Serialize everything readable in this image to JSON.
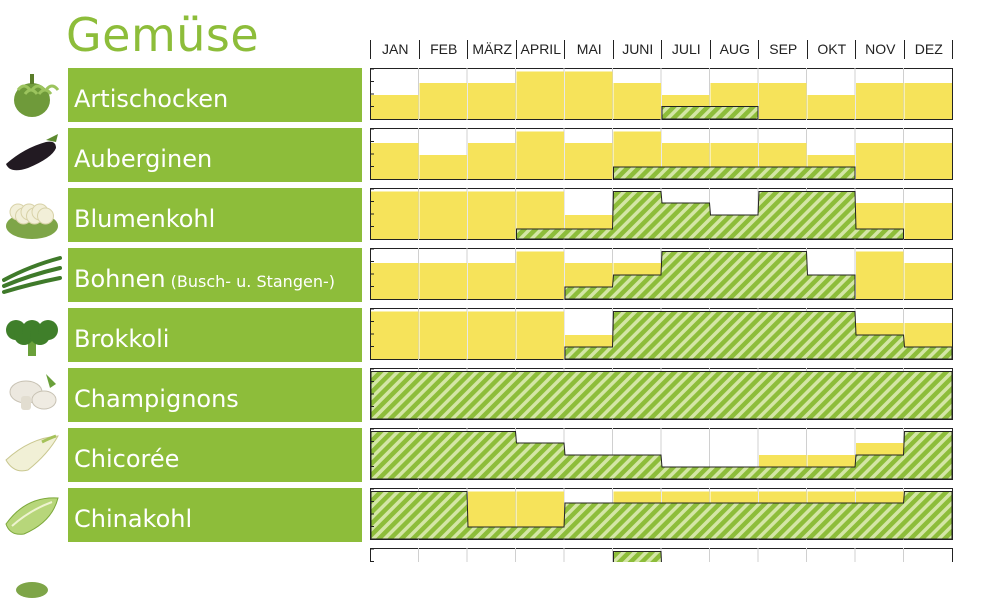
{
  "title": "Gemüse",
  "months": [
    "JAN",
    "FEB",
    "MÄRZ",
    "APRIL",
    "MAI",
    "JUNI",
    "JULI",
    "AUG",
    "SEP",
    "OKT",
    "NOV",
    "DEZ"
  ],
  "colors": {
    "green": "#8dbd3a",
    "yellow": "#f6e35a",
    "hatch": "#8dbd3a"
  },
  "chart_data": {
    "type": "area",
    "xlabel": "",
    "ylabel": "",
    "categories": [
      "JAN",
      "FEB",
      "MÄRZ",
      "APRIL",
      "MAI",
      "JUNI",
      "JULI",
      "AUG",
      "SEP",
      "OKT",
      "NOV",
      "DEZ"
    ],
    "ylim": [
      0,
      1
    ],
    "rows": [
      {
        "name": "Artischocken",
        "sub": "",
        "icon": "artichoke-icon",
        "import_level": [
          0.48,
          0.72,
          0.72,
          0.95,
          0.95,
          0.72,
          0.48,
          0.72,
          0.72,
          0.48,
          0.72,
          0.72
        ],
        "domestic_level": [
          0,
          0,
          0,
          0,
          0,
          0,
          0.25,
          0.25,
          0,
          0,
          0,
          0
        ]
      },
      {
        "name": "Auberginen",
        "sub": "",
        "icon": "eggplant-icon",
        "import_level": [
          0.72,
          0.48,
          0.72,
          0.95,
          0.72,
          0.95,
          0.72,
          0.72,
          0.72,
          0.48,
          0.72,
          0.72
        ],
        "domestic_level": [
          0,
          0,
          0,
          0,
          0,
          0.24,
          0.24,
          0.24,
          0.24,
          0.24,
          0,
          0
        ]
      },
      {
        "name": "Blumenkohl",
        "sub": "",
        "icon": "cauliflower-icon",
        "import_level": [
          0.95,
          0.95,
          0.95,
          0.95,
          0.48,
          0.24,
          0.24,
          0.24,
          0.24,
          0.24,
          0.72,
          0.72
        ],
        "domestic_level": [
          0,
          0,
          0,
          0.2,
          0.2,
          0.95,
          0.72,
          0.48,
          0.95,
          0.95,
          0.2,
          0
        ]
      },
      {
        "name": "Bohnen",
        "sub": "(Busch- u. Stangen-)",
        "icon": "beans-icon",
        "import_level": [
          0.72,
          0.72,
          0.72,
          0.95,
          0.72,
          0.72,
          0.48,
          0.48,
          0.48,
          0.24,
          0.95,
          0.72
        ],
        "domestic_level": [
          0,
          0,
          0,
          0,
          0.24,
          0.48,
          0.95,
          0.95,
          0.95,
          0.48,
          0,
          0
        ]
      },
      {
        "name": "Brokkoli",
        "sub": "",
        "icon": "broccoli-icon",
        "import_level": [
          0.95,
          0.95,
          0.95,
          0.95,
          0.48,
          0.24,
          0.24,
          0.24,
          0.24,
          0.72,
          0.72,
          0.72
        ],
        "domestic_level": [
          0,
          0,
          0,
          0,
          0.24,
          0.95,
          0.95,
          0.95,
          0.95,
          0.95,
          0.48,
          0.24
        ]
      },
      {
        "name": "Champignons",
        "sub": "",
        "icon": "mushroom-icon",
        "import_level": [
          0,
          0,
          0,
          0,
          0,
          0,
          0,
          0,
          0,
          0,
          0,
          0
        ],
        "domestic_level": [
          0.95,
          0.95,
          0.95,
          0.95,
          0.95,
          0.95,
          0.95,
          0.95,
          0.95,
          0.95,
          0.95,
          0.95
        ]
      },
      {
        "name": "Chicorée",
        "sub": "",
        "icon": "chicory-icon",
        "import_level": [
          0,
          0,
          0,
          0,
          0,
          0,
          0.24,
          0,
          0.48,
          0.48,
          0.72,
          0
        ],
        "domestic_level": [
          0.95,
          0.95,
          0.95,
          0.72,
          0.48,
          0.48,
          0.24,
          0.24,
          0.24,
          0.24,
          0.48,
          0.95
        ]
      },
      {
        "name": "Chinakohl",
        "sub": "",
        "icon": "chinese-cabbage-icon",
        "import_level": [
          0.48,
          0.48,
          0.95,
          0.95,
          0.48,
          0.95,
          0.95,
          0.95,
          0.95,
          0.95,
          0.95,
          0.48
        ],
        "domestic_level": [
          0.95,
          0.95,
          0.24,
          0.24,
          0.72,
          0.72,
          0.72,
          0.72,
          0.72,
          0.72,
          0.72,
          0.95
        ]
      },
      {
        "name": "",
        "sub": "",
        "icon": "vegetable-icon",
        "import_level": [
          0,
          0,
          0,
          0,
          0,
          0,
          0,
          0,
          0,
          0,
          0,
          0
        ],
        "domestic_level": [
          0,
          0,
          0,
          0,
          0,
          0.95,
          0.48,
          0,
          0,
          0,
          0,
          0
        ]
      }
    ]
  }
}
